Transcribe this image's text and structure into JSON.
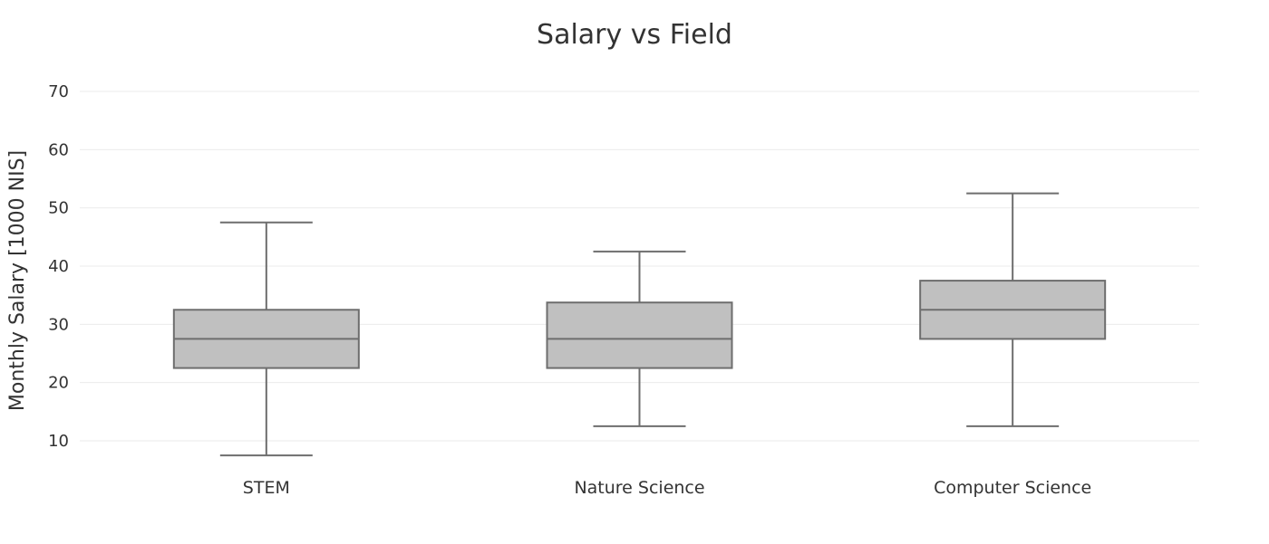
{
  "chart_data": {
    "type": "box",
    "title": "Salary vs Field",
    "xlabel": "",
    "ylabel": "Monthly Salary [1000 NIS]",
    "ylim": [
      5,
      70
    ],
    "yticks": [
      10,
      20,
      30,
      40,
      50,
      60,
      70
    ],
    "grid": true,
    "box_color": "#c0c0c0",
    "line_color": "#6e6e6e",
    "categories": [
      "STEM",
      "Nature Science",
      "Computer Science"
    ],
    "boxes": [
      {
        "category": "STEM",
        "min": 7.5,
        "q1": 22.5,
        "median": 27.5,
        "q3": 32.5,
        "max": 47.5
      },
      {
        "category": "Nature Science",
        "min": 12.5,
        "q1": 22.5,
        "median": 27.5,
        "q3": 33.75,
        "max": 42.5
      },
      {
        "category": "Computer Science",
        "min": 12.5,
        "q1": 27.5,
        "median": 32.5,
        "q3": 37.5,
        "max": 52.5
      }
    ]
  }
}
